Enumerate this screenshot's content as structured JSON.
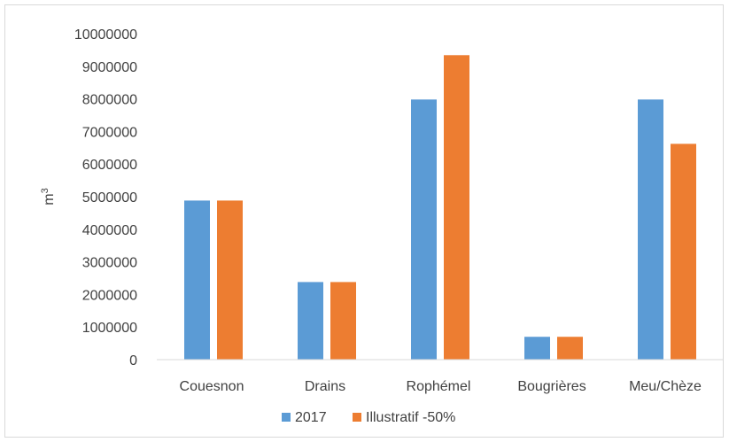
{
  "chart_data": {
    "type": "bar",
    "categories": [
      "Couesnon",
      "Drains",
      "Rophémel",
      "Bougrières",
      "Meu/Chèze"
    ],
    "series": [
      {
        "name": "2017",
        "color": "#5b9bd5",
        "values": [
          4880000,
          2380000,
          7980000,
          700000,
          7980000
        ]
      },
      {
        "name": "Illustratif -50%",
        "color": "#ed7d31",
        "values": [
          4880000,
          2380000,
          9340000,
          700000,
          6620000
        ]
      }
    ],
    "ylabel": "m",
    "ylabel_superscript": "3",
    "ylim": [
      0,
      10000000
    ],
    "yticks": [
      "0",
      "1000000",
      "2000000",
      "3000000",
      "4000000",
      "5000000",
      "6000000",
      "7000000",
      "8000000",
      "9000000",
      "10000000"
    ],
    "grid": false,
    "legend_position": "bottom"
  }
}
